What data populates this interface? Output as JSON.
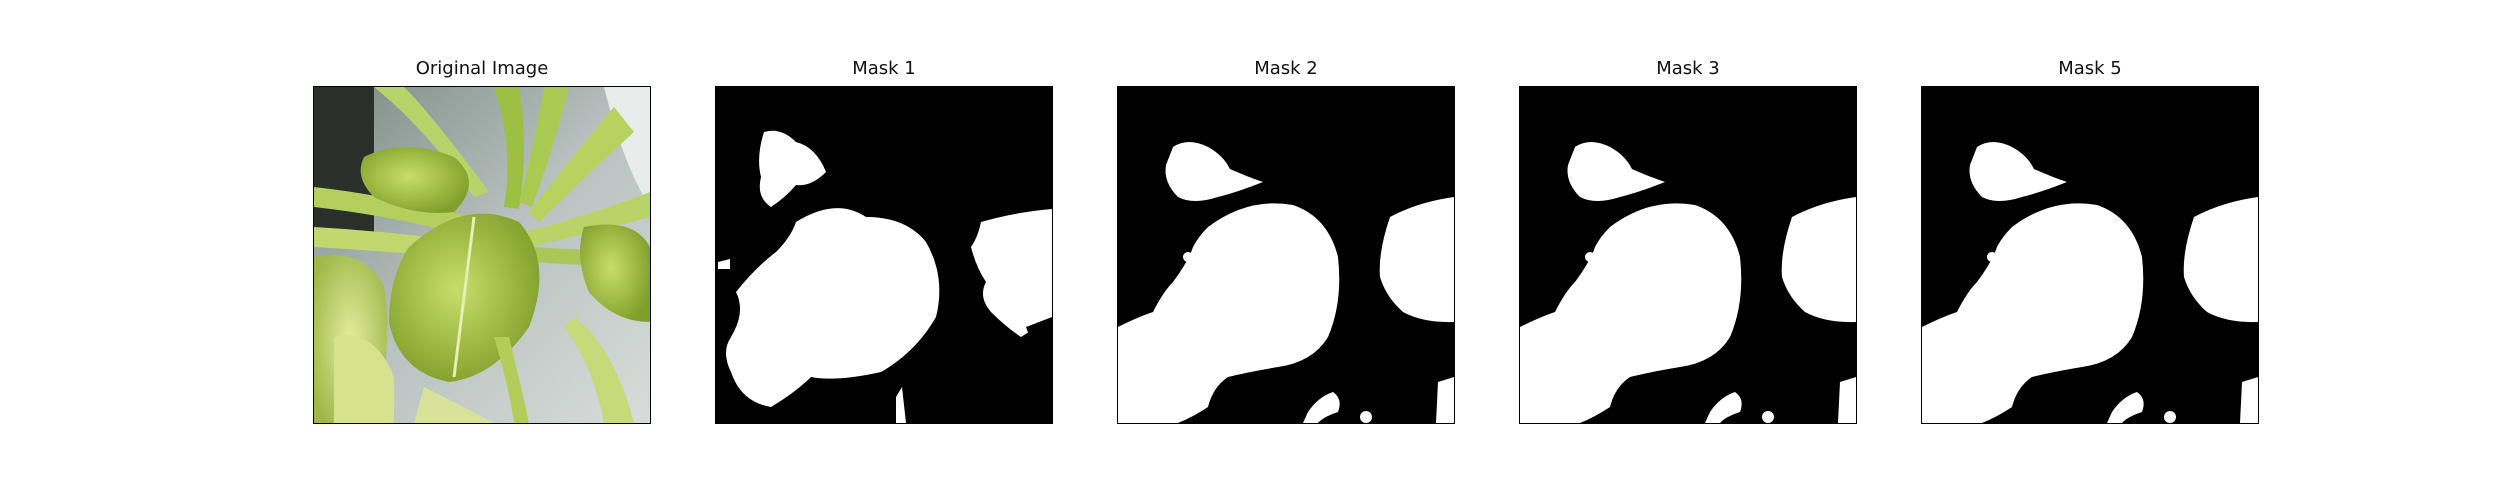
{
  "panels": [
    {
      "title": "Original Image"
    },
    {
      "title": "Mask 1"
    },
    {
      "title": "Mask 2"
    },
    {
      "title": "Mask 3"
    },
    {
      "title": "Mask 5"
    }
  ],
  "colors": {
    "mask_foreground": "#ffffff",
    "mask_background": "#000000",
    "leaf_green": "#a7c33b",
    "background_gray": "#9aa6a8"
  }
}
